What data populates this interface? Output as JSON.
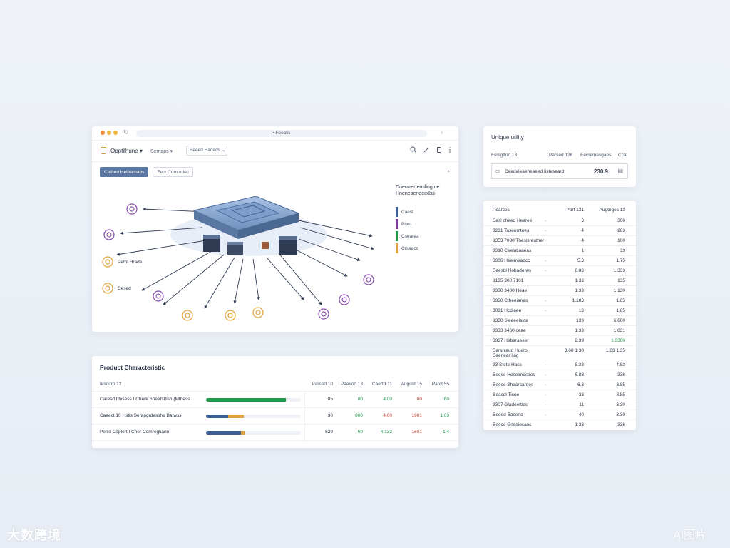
{
  "window": {
    "address": "• Fcieatis",
    "app_title": "Opptilhune",
    "dropdown_label": "Semaps",
    "select_label": "Beeed Hadeds",
    "filters": [
      "Cethed Hetearnaes",
      "Fecr Comrmtec"
    ],
    "icons": [
      "search-icon",
      "pencil-icon",
      "copy-icon",
      "more-icon"
    ]
  },
  "diagram": {
    "left_labels": [
      "Pethl Hrade",
      "Cesed"
    ],
    "legend_title": "Dnerarer eotiling ue Hneneaeneeedss",
    "legend": [
      {
        "label": "Caest",
        "color": "#3d5f95"
      },
      {
        "label": "Plest",
        "color": "#7a3aa0"
      },
      {
        "label": "Csearea",
        "color": "#1f9a4a"
      },
      {
        "label": "Crsaecc",
        "color": "#e0a23a"
      }
    ]
  },
  "product": {
    "title": "Product Characteristic",
    "headers": [
      "Iesditro 12",
      "Parsed 10",
      "Paesod 13",
      "Caertd 11",
      "August 15",
      "Parct 55"
    ],
    "rows": [
      {
        "name": "Caresd Ithisess I Cherk Sheetsttish (Mthess",
        "fill": 0.84,
        "fill2": 0,
        "c1": "85",
        "c2": "00",
        "c3": "4.00",
        "c4": "00",
        "c5": "60",
        "c3_color": "#1f9a4a",
        "c4_color": "#c0392b",
        "c5_color": "#1f9a4a"
      },
      {
        "name": "Caeect 10 Hstis Serapgrdesshe Batwss",
        "fill": 0.23,
        "fill2": 0.17,
        "c1": "30",
        "c2": "800",
        "c3": "4.00",
        "c4": "1901",
        "c5": "1.03",
        "c3_color": "#c0392b",
        "c4_color": "#c0392b",
        "c5_color": "#1f9a4a"
      },
      {
        "name": "Perrd Caplert I Cher Cemregtiann",
        "fill": 0.37,
        "fill2": 0.04,
        "c1": "629",
        "c2": "60",
        "c3": "4.132",
        "c4": "1601",
        "c5": "-1.4",
        "c3_color": "#1f9a4a",
        "c4_color": "#c0392b",
        "c5_color": "#1f9a4a"
      }
    ]
  },
  "utility": {
    "title": "Unique utility",
    "headers": [
      "Fsrsgtfod 13",
      "Parsed 126",
      "Eecremesgaes",
      "Ccat"
    ],
    "row_label": "Ceadeleaeneaeed Iisteseard",
    "row_value": "230.9"
  },
  "table": {
    "headers": [
      "Pearces",
      "Parf 131",
      "Augtriges 13"
    ],
    "rows": [
      {
        "c1": "Sasl cheed Hearee",
        "c2": "-",
        "c3": "3",
        "c4": "300"
      },
      {
        "c1": "3231 Taseemtees",
        "c2": "-",
        "c3": "4",
        "c4": "283"
      },
      {
        "c1": "3353 7030 Thesisreuther",
        "c2": "-",
        "c3": "4",
        "c4": "100"
      },
      {
        "c1": "3310 Ceelatiaaeas",
        "c2": "",
        "c3": "1",
        "c4": "33"
      },
      {
        "c1": "3306 Heeimeadcc",
        "c2": "-",
        "c3": "5.3",
        "c4": "1.75"
      },
      {
        "c1": "Seesbl Hobaderen",
        "c2": "-",
        "c3": "8.83",
        "c4": "1.333"
      },
      {
        "c1": "3135 300 7101",
        "c2": "",
        "c3": "1.33",
        "c4": "135"
      },
      {
        "c1": "3330 3400 Heae",
        "c2": "",
        "c3": "1.33",
        "c4": "1.130"
      },
      {
        "c1": "3330 Ctheeianes",
        "c2": "-",
        "c3": "1.183",
        "c4": "1.65"
      },
      {
        "c1": "3031 Hcdiaee",
        "c2": "-",
        "c3": "13",
        "c4": "1.85"
      },
      {
        "c1": "3330 Sleeeelaice",
        "c2": "",
        "c3": "139",
        "c4": "6.600"
      },
      {
        "c1": "3333 3460 ceae",
        "c2": "",
        "c3": "1.33",
        "c4": "1.831"
      },
      {
        "c1": "3337 Hebaraeeer",
        "c2": "",
        "c3": "2.39",
        "c4": "1.3300",
        "c4_color": "#1f9a4a"
      },
      {
        "c1": "Sarsnlaud Huero Saeriear liag",
        "c2": "",
        "c3": "3.60 1.30",
        "c4": "1.83 1.35",
        "tall": true
      },
      {
        "c1": "33 Stete Hass",
        "c2": "-",
        "c3": "8.33",
        "c4": "4.83"
      },
      {
        "c1": "Seese Heseimesaes",
        "c2": "-",
        "c3": "6.88",
        "c4": "336"
      },
      {
        "c1": "Seece Shearcarees",
        "c2": "-",
        "c3": "6.3",
        "c4": "3.85"
      },
      {
        "c1": "Seacdl Ticoe",
        "c2": "-",
        "c3": "33",
        "c4": "3.85"
      },
      {
        "c1": "3307 Gladeetties",
        "c2": "-",
        "c3": "11",
        "c4": "3.30"
      },
      {
        "c1": "Seeed Baseno",
        "c2": "-",
        "c3": "40",
        "c4": "3.30"
      },
      {
        "c1": "Seece Geseiesaes",
        "c2": "",
        "c3": "1.33",
        "c4": "336"
      }
    ]
  },
  "watermarks": {
    "left": "大数跨境",
    "right": "AI图片"
  }
}
